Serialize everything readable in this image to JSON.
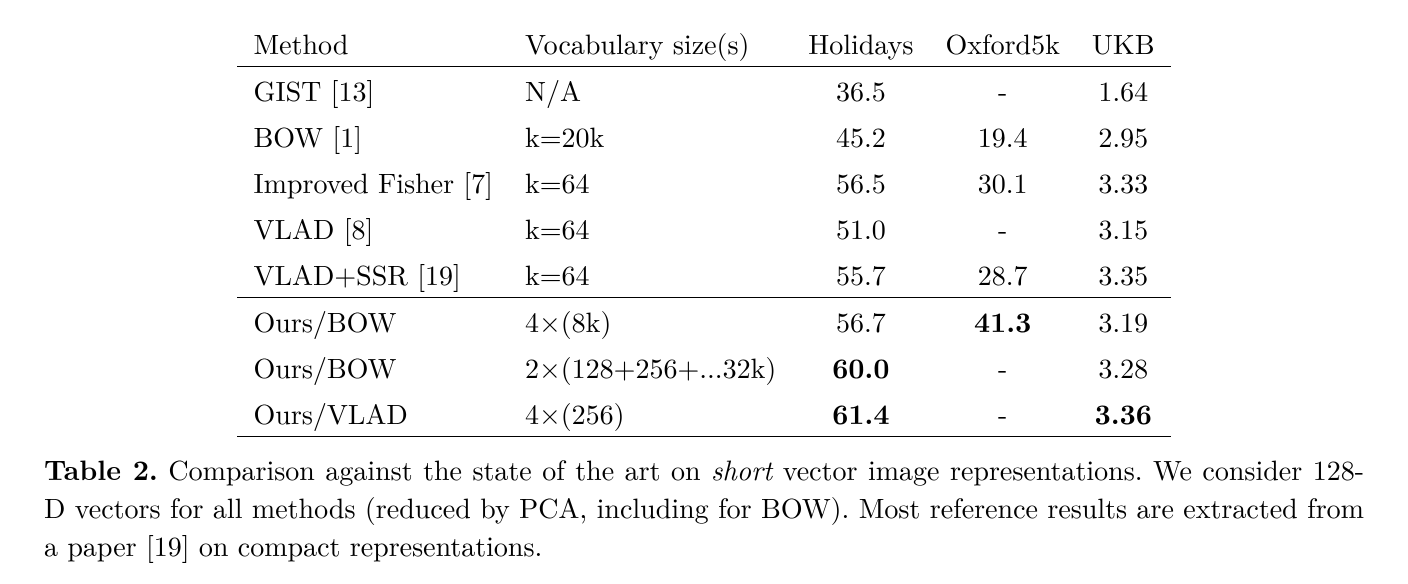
{
  "table": {
    "columns": [
      "Method",
      "Vocabulary size(s)",
      "Holidays",
      "Oxford5k",
      "UKB"
    ],
    "col_align": [
      "left",
      "left",
      "center",
      "center",
      "center"
    ],
    "sections": [
      [
        {
          "method": "GIST [13]",
          "vocab": "N/A",
          "holidays": "36.5",
          "oxford": "-",
          "ukb": "1.64",
          "bold": {}
        },
        {
          "method": "BOW [1]",
          "vocab": "k=20k",
          "holidays": "45.2",
          "oxford": "19.4",
          "ukb": "2.95",
          "bold": {}
        },
        {
          "method": "Improved Fisher [7]",
          "vocab": "k=64",
          "holidays": "56.5",
          "oxford": "30.1",
          "ukb": "3.33",
          "bold": {}
        },
        {
          "method": "VLAD [8]",
          "vocab": "k=64",
          "holidays": "51.0",
          "oxford": "-",
          "ukb": "3.15",
          "bold": {}
        },
        {
          "method": "VLAD+SSR [19]",
          "vocab": "k=64",
          "holidays": "55.7",
          "oxford": "28.7",
          "ukb": "3.35",
          "bold": {}
        }
      ],
      [
        {
          "method": "Ours/BOW",
          "vocab": "4×(8k)",
          "holidays": "56.7",
          "oxford": "41.3",
          "ukb": "3.19",
          "bold": {
            "oxford": true
          }
        },
        {
          "method": "Ours/BOW",
          "vocab": "2×(128+256+...32k)",
          "holidays": "60.0",
          "oxford": "-",
          "ukb": "3.28",
          "bold": {
            "holidays": true
          }
        },
        {
          "method": "Ours/VLAD",
          "vocab": "4×(256)",
          "holidays": "61.4",
          "oxford": "-",
          "ukb": "3.36",
          "bold": {
            "holidays": true,
            "ukb": true
          }
        }
      ]
    ],
    "rule_color": "#000000",
    "font_size_pt": 21,
    "background_color": "#ffffff"
  },
  "caption": {
    "label": "Table 2.",
    "pre": " Comparison against the state of the art on ",
    "ital": "short",
    "post": " vector image representations. We consider 128-D vectors for all methods (reduced by PCA, including for BOW). Most reference results are extracted from a paper [19] on compact representations."
  }
}
